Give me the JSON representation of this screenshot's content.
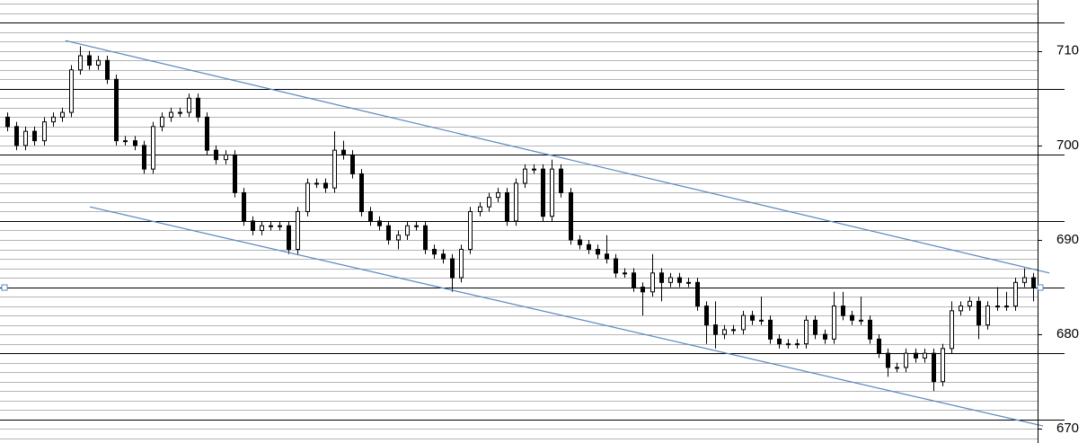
{
  "chart_data": {
    "type": "candlestick",
    "ylim": [
      668.5,
      715.4
    ],
    "yticks": [
      670,
      680,
      690,
      700,
      710
    ],
    "xlim": [
      -0.8,
      113.5
    ],
    "grid_step": 1,
    "major_lines": [
      671,
      678,
      685,
      692,
      699,
      706,
      713
    ],
    "up_color": "#ffffff",
    "down_color": "#000000",
    "trend_color": "#5b87c0",
    "trend_lines": [
      {
        "x": [
          6.4,
          114.8
        ],
        "y": [
          711.1,
          686.5
        ]
      },
      {
        "x": [
          9.1,
          114.1
        ],
        "y": [
          693.5,
          670.3
        ]
      }
    ],
    "series": [
      {
        "open": [
          703,
          702,
          700,
          701.5,
          700.5,
          702.5,
          703,
          703.5,
          708,
          709.5,
          708.5,
          709,
          707,
          700.5,
          700.5,
          700,
          697.5,
          702,
          703,
          703.5,
          703.5,
          705,
          703,
          699.5,
          698.5,
          699,
          695,
          692,
          691,
          691.5,
          691.5,
          691.5,
          689,
          693,
          696,
          696,
          695.5,
          699.5,
          699,
          697,
          693,
          692,
          691.5,
          690,
          690.5,
          691.5,
          691.5,
          689,
          688.5,
          688,
          686,
          689,
          693,
          693.5,
          694.5,
          695,
          692,
          696,
          697.5,
          697.5,
          692.5,
          697.5,
          695,
          690,
          689.5,
          689,
          688.5,
          688,
          686.5,
          686.5,
          685,
          684.5,
          686.5,
          685.5,
          686,
          685.5,
          685.5,
          683,
          681,
          680,
          680.5,
          680.5,
          682,
          681.5,
          681.5,
          679.5,
          679,
          679,
          679,
          681.5,
          680,
          679.5,
          683,
          682,
          681.5,
          681.5,
          679.5,
          678,
          676.5,
          676.5,
          678,
          677.5,
          678,
          675,
          678.5,
          682.5,
          683,
          683.5,
          681,
          683,
          683,
          683,
          685.5,
          686
        ],
        "high": [
          703.5,
          702.5,
          702,
          702,
          703,
          703.5,
          704,
          708.5,
          710.5,
          710,
          709.5,
          709.5,
          707.5,
          701,
          701,
          700.5,
          702.5,
          703.5,
          704,
          704,
          705.5,
          705.5,
          703.5,
          700,
          699.5,
          699.5,
          695.5,
          692.5,
          692,
          692,
          692,
          692,
          693.5,
          696.5,
          696.5,
          696.5,
          701.5,
          700.5,
          699.5,
          697.5,
          693.5,
          692.5,
          692,
          691,
          692,
          692,
          692,
          689.5,
          689,
          688.5,
          689.5,
          693.5,
          694,
          695,
          695.5,
          695.5,
          696.5,
          698,
          698,
          698,
          698.5,
          698,
          695.5,
          690.5,
          690,
          689.5,
          690.5,
          688.5,
          687,
          687,
          685.5,
          688.5,
          687,
          686.5,
          686.5,
          686,
          686,
          683.5,
          683.5,
          681,
          681,
          682.5,
          682.5,
          684,
          682,
          680,
          679.5,
          679.5,
          682,
          682,
          680.5,
          684.5,
          684.5,
          682.5,
          684,
          682,
          680,
          678.5,
          677,
          678.5,
          678.5,
          678.5,
          678.5,
          679,
          683.5,
          683.5,
          684,
          684,
          683.5,
          685,
          684.5,
          686,
          687,
          686.5
        ],
        "low": [
          701.5,
          699.5,
          699.5,
          700,
          700,
          702,
          702.5,
          703,
          707.5,
          708,
          708,
          706.5,
          700,
          700,
          699.5,
          697,
          697,
          701.5,
          702.5,
          703,
          703,
          702.5,
          699,
          698,
          698,
          694.5,
          691.5,
          690.5,
          690.5,
          691,
          691,
          688.5,
          688.5,
          692.5,
          695.5,
          695,
          695,
          698.5,
          696.5,
          692.5,
          691.5,
          691,
          689.5,
          689,
          690,
          691,
          688.5,
          688,
          687.5,
          684.5,
          685.5,
          688.5,
          692.5,
          693,
          694,
          691.5,
          691.5,
          695.5,
          697,
          692,
          692,
          694.5,
          689.5,
          689,
          688.5,
          688,
          687.5,
          686,
          686,
          684.5,
          682,
          684,
          683.5,
          685,
          685,
          685,
          682.5,
          679,
          678.5,
          679.5,
          680,
          680,
          681,
          681,
          679,
          678.5,
          678.5,
          678.5,
          678.5,
          679.5,
          679,
          679,
          681.5,
          681,
          681,
          679,
          677.5,
          675.5,
          676,
          676,
          677,
          677,
          674,
          674.5,
          678,
          682,
          682.5,
          679.5,
          680.5,
          682.5,
          682.5,
          682.5,
          685,
          683.5
        ],
        "close": [
          702,
          700,
          701.5,
          700.5,
          702.5,
          703,
          703.5,
          708,
          709.5,
          708.5,
          709,
          707,
          700.5,
          700.5,
          700,
          697.5,
          702,
          703,
          703.5,
          703.5,
          705,
          703,
          699.5,
          698.5,
          699,
          695,
          692,
          691,
          691.5,
          691.5,
          691.5,
          689,
          693,
          696,
          696,
          695.5,
          699.5,
          699,
          697,
          693,
          692,
          691.5,
          690,
          690.5,
          691.5,
          691.5,
          689,
          688.5,
          688,
          686,
          689,
          693,
          693.5,
          694.5,
          695,
          692,
          696,
          697.5,
          697.5,
          692.5,
          697.5,
          695,
          690,
          689.5,
          689,
          688.5,
          688,
          686.5,
          686.5,
          685,
          684.5,
          686.5,
          685.5,
          686,
          685.5,
          685.5,
          683,
          681,
          680,
          680.5,
          680.5,
          682,
          681.5,
          681.5,
          679.5,
          679,
          679,
          679,
          681.5,
          680,
          679.5,
          683,
          682,
          681.5,
          681.5,
          679.5,
          678,
          676.5,
          676.5,
          678,
          677.5,
          678,
          675,
          678.5,
          682.5,
          683,
          683.5,
          681,
          683,
          683,
          683,
          685.5,
          686,
          685
        ]
      }
    ]
  }
}
